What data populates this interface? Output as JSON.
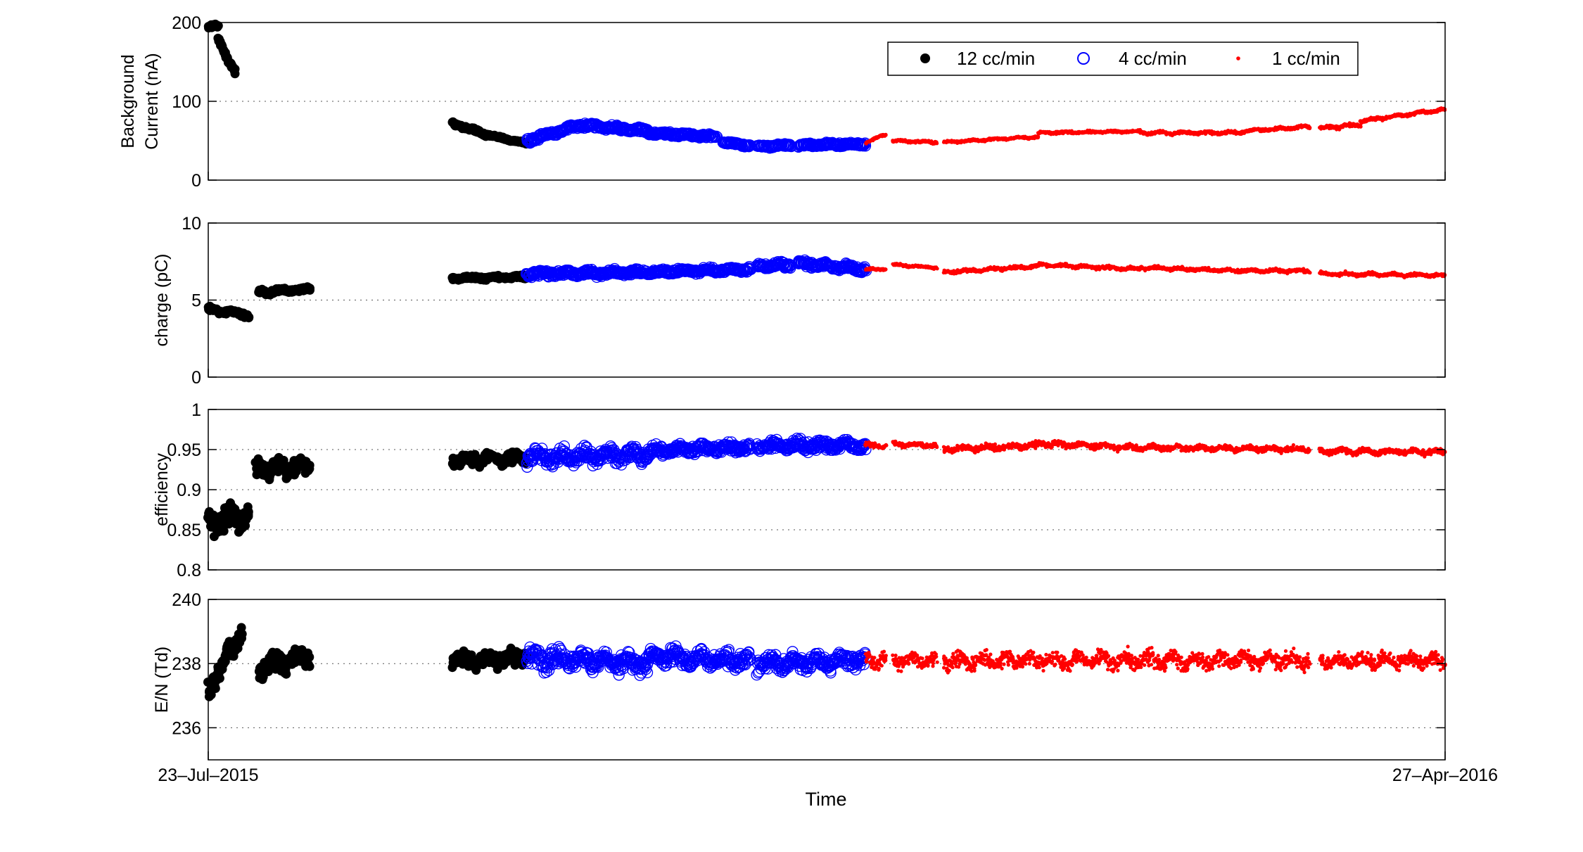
{
  "chart_data": [
    {
      "type": "scatter",
      "ylabel": [
        "Background",
        "Current (nA)"
      ],
      "ylim": [
        0,
        200
      ],
      "yticks": [
        "0",
        "100",
        "200"
      ],
      "grid": "horizontal dotted",
      "legend": {
        "position": "top-right",
        "entries": [
          {
            "label": "12 cc/min",
            "marker": "filled-circle",
            "color": "#000000"
          },
          {
            "label": "4 cc/min",
            "marker": "open-circle",
            "color": "#0000ff"
          },
          {
            "label": "1 cc/min",
            "marker": "dot",
            "color": "#ff0000"
          }
        ]
      },
      "series": [
        {
          "name": "12 cc/min",
          "segments": [
            {
              "x0": 0,
              "x1": 3,
              "y0": 195,
              "y1": 195,
              "noise": 3
            },
            {
              "x0": 3,
              "x1": 8,
              "y0": 180,
              "y1": 135,
              "noise": 5
            },
            {
              "x0": 72,
              "x1": 82,
              "y0": 72,
              "y1": 58,
              "noise": 3
            },
            {
              "x0": 82,
              "x1": 94,
              "y0": 58,
              "y1": 46,
              "noise": 2
            }
          ]
        },
        {
          "name": "4 cc/min",
          "segments": [
            {
              "x0": 94,
              "x1": 110,
              "y0": 50,
              "y1": 70,
              "noise": 4
            },
            {
              "x0": 110,
              "x1": 130,
              "y0": 70,
              "y1": 62,
              "noise": 4
            },
            {
              "x0": 130,
              "x1": 150,
              "y0": 60,
              "y1": 55,
              "noise": 3
            },
            {
              "x0": 152,
              "x1": 160,
              "y0": 48,
              "y1": 44,
              "noise": 2
            },
            {
              "x0": 162,
              "x1": 172,
              "y0": 43,
              "y1": 44,
              "noise": 2
            },
            {
              "x0": 174,
              "x1": 194,
              "y0": 44,
              "y1": 46,
              "noise": 3
            }
          ]
        },
        {
          "name": "1 cc/min",
          "segments": [
            {
              "x0": 194,
              "x1": 200,
              "y0": 48,
              "y1": 58,
              "noise": 2
            },
            {
              "x0": 202,
              "x1": 215,
              "y0": 50,
              "y1": 48,
              "noise": 2
            },
            {
              "x0": 217,
              "x1": 245,
              "y0": 48,
              "y1": 55,
              "noise": 2
            },
            {
              "x0": 245,
              "x1": 275,
              "y0": 60,
              "y1": 62,
              "noise": 2
            },
            {
              "x0": 275,
              "x1": 305,
              "y0": 60,
              "y1": 60,
              "noise": 3
            },
            {
              "x0": 305,
              "x1": 325,
              "y0": 62,
              "y1": 68,
              "noise": 3
            },
            {
              "x0": 328,
              "x1": 340,
              "y0": 66,
              "y1": 70,
              "noise": 3
            },
            {
              "x0": 340,
              "x1": 365,
              "y0": 75,
              "y1": 90,
              "noise": 3
            }
          ]
        }
      ]
    },
    {
      "type": "scatter",
      "ylabel": [
        "charge (pC)"
      ],
      "ylim": [
        0,
        10
      ],
      "yticks": [
        "0",
        "5",
        "10"
      ],
      "grid": "horizontal dotted",
      "series": [
        {
          "name": "12 cc/min",
          "segments": [
            {
              "x0": 0,
              "x1": 12,
              "y0": 4.4,
              "y1": 4.0,
              "noise": 0.2
            },
            {
              "x0": 15,
              "x1": 30,
              "y0": 5.5,
              "y1": 5.7,
              "noise": 0.2
            },
            {
              "x0": 72,
              "x1": 94,
              "y0": 6.4,
              "y1": 6.5,
              "noise": 0.15
            }
          ]
        },
        {
          "name": "4 cc/min",
          "segments": [
            {
              "x0": 94,
              "x1": 130,
              "y0": 6.7,
              "y1": 6.8,
              "noise": 0.25
            },
            {
              "x0": 130,
              "x1": 160,
              "y0": 6.8,
              "y1": 7.0,
              "noise": 0.2
            },
            {
              "x0": 162,
              "x1": 172,
              "y0": 7.2,
              "y1": 7.3,
              "noise": 0.25
            },
            {
              "x0": 174,
              "x1": 194,
              "y0": 7.4,
              "y1": 7.0,
              "noise": 0.25
            }
          ]
        },
        {
          "name": "1 cc/min",
          "segments": [
            {
              "x0": 194,
              "x1": 200,
              "y0": 7.0,
              "y1": 7.0,
              "noise": 0.1
            },
            {
              "x0": 202,
              "x1": 215,
              "y0": 7.3,
              "y1": 7.1,
              "noise": 0.1
            },
            {
              "x0": 217,
              "x1": 245,
              "y0": 6.8,
              "y1": 7.2,
              "noise": 0.15
            },
            {
              "x0": 245,
              "x1": 275,
              "y0": 7.3,
              "y1": 7.0,
              "noise": 0.15
            },
            {
              "x0": 275,
              "x1": 305,
              "y0": 7.1,
              "y1": 6.9,
              "noise": 0.15
            },
            {
              "x0": 305,
              "x1": 325,
              "y0": 6.9,
              "y1": 6.9,
              "noise": 0.15
            },
            {
              "x0": 328,
              "x1": 365,
              "y0": 6.7,
              "y1": 6.6,
              "noise": 0.15
            }
          ]
        }
      ]
    },
    {
      "type": "scatter",
      "ylabel": [
        "efficiency"
      ],
      "ylim": [
        0.8,
        1
      ],
      "yticks": [
        "0.8",
        "0.85",
        "0.9",
        "0.95",
        "1"
      ],
      "grid": "horizontal dotted",
      "series": [
        {
          "name": "12 cc/min",
          "segments": [
            {
              "x0": 0,
              "x1": 12,
              "y0": 0.86,
              "y1": 0.87,
              "noise": 0.02
            },
            {
              "x0": 14,
              "x1": 30,
              "y0": 0.925,
              "y1": 0.93,
              "noise": 0.015
            },
            {
              "x0": 72,
              "x1": 94,
              "y0": 0.937,
              "y1": 0.94,
              "noise": 0.01
            }
          ]
        },
        {
          "name": "4 cc/min",
          "segments": [
            {
              "x0": 94,
              "x1": 130,
              "y0": 0.94,
              "y1": 0.945,
              "noise": 0.012
            },
            {
              "x0": 130,
              "x1": 160,
              "y0": 0.948,
              "y1": 0.953,
              "noise": 0.008
            },
            {
              "x0": 162,
              "x1": 194,
              "y0": 0.955,
              "y1": 0.955,
              "noise": 0.008
            }
          ]
        },
        {
          "name": "1 cc/min",
          "segments": [
            {
              "x0": 194,
              "x1": 200,
              "y0": 0.955,
              "y1": 0.955,
              "noise": 0.004
            },
            {
              "x0": 202,
              "x1": 215,
              "y0": 0.957,
              "y1": 0.955,
              "noise": 0.004
            },
            {
              "x0": 217,
              "x1": 245,
              "y0": 0.95,
              "y1": 0.955,
              "noise": 0.005
            },
            {
              "x0": 245,
              "x1": 275,
              "y0": 0.958,
              "y1": 0.952,
              "noise": 0.005
            },
            {
              "x0": 275,
              "x1": 325,
              "y0": 0.953,
              "y1": 0.95,
              "noise": 0.005
            },
            {
              "x0": 328,
              "x1": 365,
              "y0": 0.948,
              "y1": 0.947,
              "noise": 0.005
            }
          ]
        }
      ]
    },
    {
      "type": "scatter",
      "ylabel": [
        "E/N (Td)"
      ],
      "ylim": [
        235,
        240
      ],
      "yticks": [
        "236",
        "238",
        "240"
      ],
      "grid": "horizontal dotted",
      "series": [
        {
          "name": "12 cc/min",
          "segments": [
            {
              "x0": 0,
              "x1": 10,
              "y0": 237.2,
              "y1": 239.0,
              "noise": 0.4
            },
            {
              "x0": 15,
              "x1": 30,
              "y0": 237.8,
              "y1": 238.3,
              "noise": 0.4
            },
            {
              "x0": 72,
              "x1": 94,
              "y0": 238.1,
              "y1": 238.2,
              "noise": 0.3
            }
          ]
        },
        {
          "name": "4 cc/min",
          "segments": [
            {
              "x0": 94,
              "x1": 130,
              "y0": 238.2,
              "y1": 238.0,
              "noise": 0.4
            },
            {
              "x0": 130,
              "x1": 160,
              "y0": 238.2,
              "y1": 238.1,
              "noise": 0.35
            },
            {
              "x0": 162,
              "x1": 194,
              "y0": 238.0,
              "y1": 238.1,
              "noise": 0.3
            }
          ]
        },
        {
          "name": "1 cc/min",
          "segments": [
            {
              "x0": 194,
              "x1": 200,
              "y0": 238.1,
              "y1": 238.1,
              "noise": 0.3
            },
            {
              "x0": 202,
              "x1": 215,
              "y0": 238.1,
              "y1": 238.1,
              "noise": 0.3
            },
            {
              "x0": 217,
              "x1": 325,
              "y0": 238.1,
              "y1": 238.1,
              "noise": 0.35
            },
            {
              "x0": 328,
              "x1": 365,
              "y0": 238.1,
              "y1": 238.1,
              "noise": 0.3
            }
          ]
        }
      ]
    }
  ],
  "x_axis": {
    "label": "Time",
    "start_label": "23–Jul–2015",
    "end_label": "27–Apr–2016",
    "range": [
      0,
      365
    ]
  }
}
